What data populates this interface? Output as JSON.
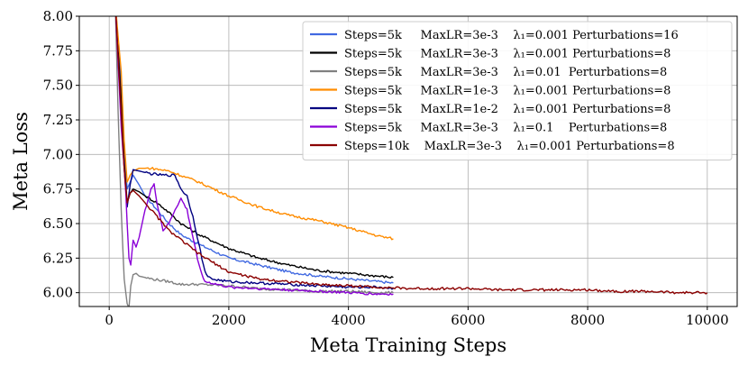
{
  "chart_data": {
    "type": "line",
    "title": "",
    "xlabel": "Meta Training Steps",
    "ylabel": "Meta Loss",
    "xlim": [
      -500,
      10500
    ],
    "ylim": [
      5.9,
      8.0
    ],
    "xticks": [
      0,
      2000,
      4000,
      6000,
      8000,
      10000
    ],
    "yticks": [
      6.0,
      6.25,
      6.5,
      6.75,
      7.0,
      7.25,
      7.5,
      7.75,
      8.0
    ],
    "xtick_labels": [
      "0",
      "2000",
      "4000",
      "6000",
      "8000",
      "10000"
    ],
    "ytick_labels": [
      "6.00",
      "6.25",
      "6.50",
      "6.75",
      "7.00",
      "7.25",
      "7.50",
      "7.75",
      "8.00"
    ],
    "grid": true,
    "legend_position": "top-right",
    "series": [
      {
        "name": "Steps=5k     MaxLR=3e-3    λ₁=0.001 Perturbations=16",
        "color": "#4169e1",
        "x": [
          100,
          200,
          250,
          300,
          350,
          400,
          500,
          600,
          800,
          1000,
          1200,
          1500,
          2000,
          2500,
          3000,
          3500,
          4000,
          4500,
          4750
        ],
        "y": [
          8.1,
          7.5,
          7.05,
          6.75,
          6.8,
          6.85,
          6.78,
          6.7,
          6.6,
          6.5,
          6.42,
          6.35,
          6.25,
          6.2,
          6.15,
          6.12,
          6.1,
          6.08,
          6.07
        ]
      },
      {
        "name": "Steps=5k     MaxLR=3e-3    λ₁=0.001 Perturbations=8",
        "color": "#000000",
        "x": [
          100,
          200,
          250,
          300,
          350,
          400,
          500,
          600,
          800,
          1000,
          1200,
          1500,
          2000,
          2500,
          3000,
          3500,
          4000,
          4500,
          4750
        ],
        "y": [
          8.1,
          7.4,
          6.95,
          6.65,
          6.72,
          6.75,
          6.73,
          6.7,
          6.65,
          6.58,
          6.5,
          6.42,
          6.32,
          6.25,
          6.2,
          6.16,
          6.14,
          6.12,
          6.11
        ]
      },
      {
        "name": "Steps=5k     MaxLR=3e-3    λ₁=0.01  Perturbations=8",
        "color": "#808080",
        "x": [
          100,
          150,
          200,
          250,
          300,
          330,
          360,
          400,
          450,
          500,
          700,
          1000,
          1200,
          1500,
          2000,
          2500,
          3000,
          3500,
          4000,
          4500,
          4750
        ],
        "y": [
          8.1,
          7.3,
          6.6,
          6.1,
          5.92,
          5.89,
          6.05,
          6.13,
          6.14,
          6.12,
          6.1,
          6.08,
          6.06,
          6.06,
          6.05,
          6.03,
          6.02,
          6.01,
          6.01,
          6.0,
          6.0
        ]
      },
      {
        "name": "Steps=5k     MaxLR=1e-3    λ₁=0.001 Perturbations=8",
        "color": "#ff8c00",
        "x": [
          100,
          200,
          250,
          300,
          350,
          400,
          500,
          700,
          1000,
          1500,
          2000,
          2500,
          3000,
          3500,
          4000,
          4500,
          4750
        ],
        "y": [
          8.1,
          7.6,
          7.1,
          6.8,
          6.85,
          6.88,
          6.9,
          6.9,
          6.88,
          6.8,
          6.7,
          6.62,
          6.56,
          6.52,
          6.47,
          6.41,
          6.39
        ]
      },
      {
        "name": "Steps=5k     MaxLR=1e-2    λ₁=0.001 Perturbations=8",
        "color": "#000080",
        "x": [
          100,
          200,
          250,
          300,
          350,
          400,
          500,
          700,
          900,
          1100,
          1200,
          1300,
          1400,
          1500,
          1600,
          1700,
          2000,
          2500,
          3000,
          3500,
          4000,
          4500,
          4750
        ],
        "y": [
          8.1,
          7.3,
          6.9,
          6.62,
          6.78,
          6.89,
          6.88,
          6.86,
          6.85,
          6.85,
          6.75,
          6.7,
          6.55,
          6.35,
          6.15,
          6.1,
          6.08,
          6.07,
          6.06,
          6.05,
          6.04,
          6.04,
          6.03
        ]
      },
      {
        "name": "Steps=5k     MaxLR=3e-3    λ₁=0.1    Perturbations=8",
        "color": "#8b00d8",
        "x": [
          100,
          200,
          250,
          280,
          300,
          330,
          360,
          400,
          450,
          500,
          600,
          700,
          750,
          800,
          900,
          1000,
          1100,
          1200,
          1300,
          1400,
          1500,
          1600,
          2000,
          2500,
          3000,
          3500,
          4000,
          4500,
          4750
        ],
        "y": [
          8.1,
          7.2,
          6.9,
          6.7,
          6.5,
          6.25,
          6.2,
          6.38,
          6.33,
          6.4,
          6.6,
          6.75,
          6.78,
          6.65,
          6.45,
          6.5,
          6.6,
          6.68,
          6.6,
          6.4,
          6.2,
          6.08,
          6.04,
          6.03,
          6.02,
          6.01,
          6.0,
          5.99,
          5.99
        ]
      },
      {
        "name": "Steps=10k    MaxLR=3e-3    λ₁=0.001 Perturbations=8",
        "color": "#8b0000",
        "x": [
          100,
          200,
          250,
          300,
          350,
          400,
          500,
          700,
          1000,
          1500,
          2000,
          2500,
          3000,
          3500,
          4000,
          4500,
          5000,
          5500,
          6000,
          6500,
          7000,
          7500,
          8000,
          8500,
          9000,
          9500,
          10000
        ],
        "y": [
          8.1,
          7.3,
          6.9,
          6.65,
          6.72,
          6.74,
          6.7,
          6.6,
          6.45,
          6.28,
          6.15,
          6.1,
          6.08,
          6.06,
          6.05,
          6.04,
          6.03,
          6.03,
          6.03,
          6.02,
          6.02,
          6.02,
          6.02,
          6.01,
          6.01,
          6.0,
          6.0
        ]
      }
    ]
  }
}
